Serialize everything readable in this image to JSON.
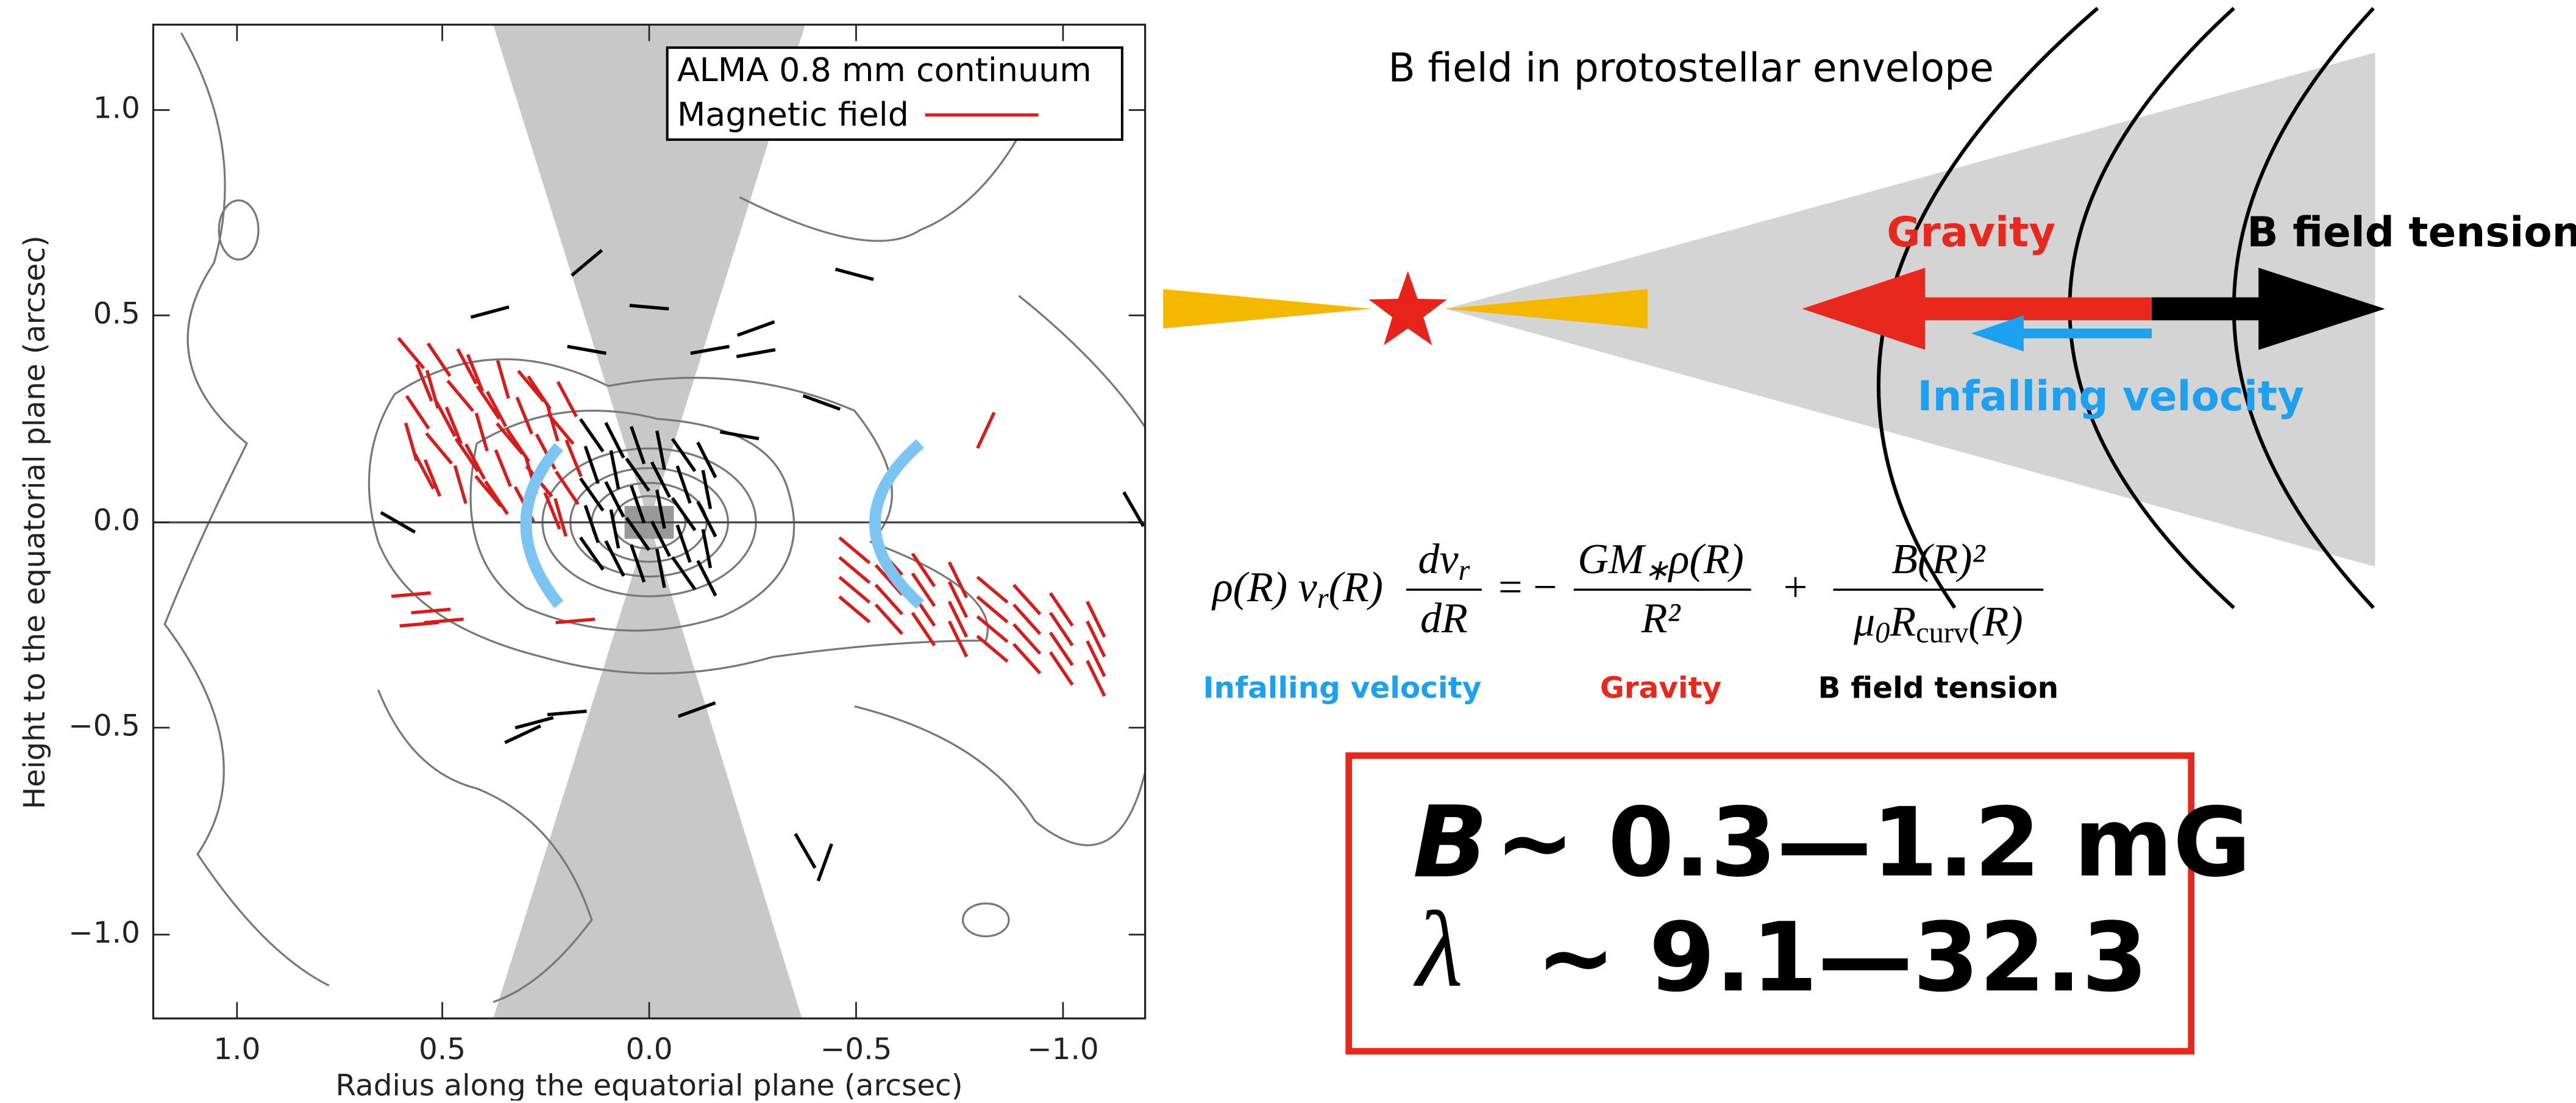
{
  "plot": {
    "legend": [
      "ALMA 0.8 mm continuum",
      "Magnetic field"
    ],
    "x_label": "Radius along the equatorial plane (arcsec)",
    "y_label": "Height to the equatorial plane (arcsec)",
    "x_ticks": [
      "1.0",
      "0.5",
      "0.0",
      "−0.5",
      "−1.0"
    ],
    "y_ticks": [
      "1.0",
      "0.5",
      "0.0",
      "−0.5",
      "−1.0"
    ]
  },
  "diagram": {
    "title": "B field in protostellar envelope",
    "gravity": "Gravity",
    "tension": "B field tension",
    "infall": "Infalling velocity"
  },
  "equation": {
    "lhs": "ρ(R) v",
    "lhs_sub": "r",
    "lhs_end": "(R)",
    "lhs_num": "dv",
    "lhs_num_sub": "r",
    "lhs_den": "dR",
    "eq": "= −",
    "t1_num": "GM",
    "t1_num_sub": "∗",
    "t1_num_end": "ρ(R)",
    "t1_den": "R²",
    "plus": "+",
    "t2_num": "B(R)²",
    "t2_den": "μ",
    "t2_den_sub": "0",
    "t2_den_mid": "R",
    "t2_den_sub2": "curv",
    "t2_den_end": "(R)",
    "labels": [
      "Infalling velocity",
      "Gravity",
      "B field tension"
    ]
  },
  "result": {
    "b_symbol": "B",
    "b_text": "~ 0.3—1.2 mG",
    "l_symbol": "λ",
    "l_text": "~ 9.1—32.3"
  }
}
